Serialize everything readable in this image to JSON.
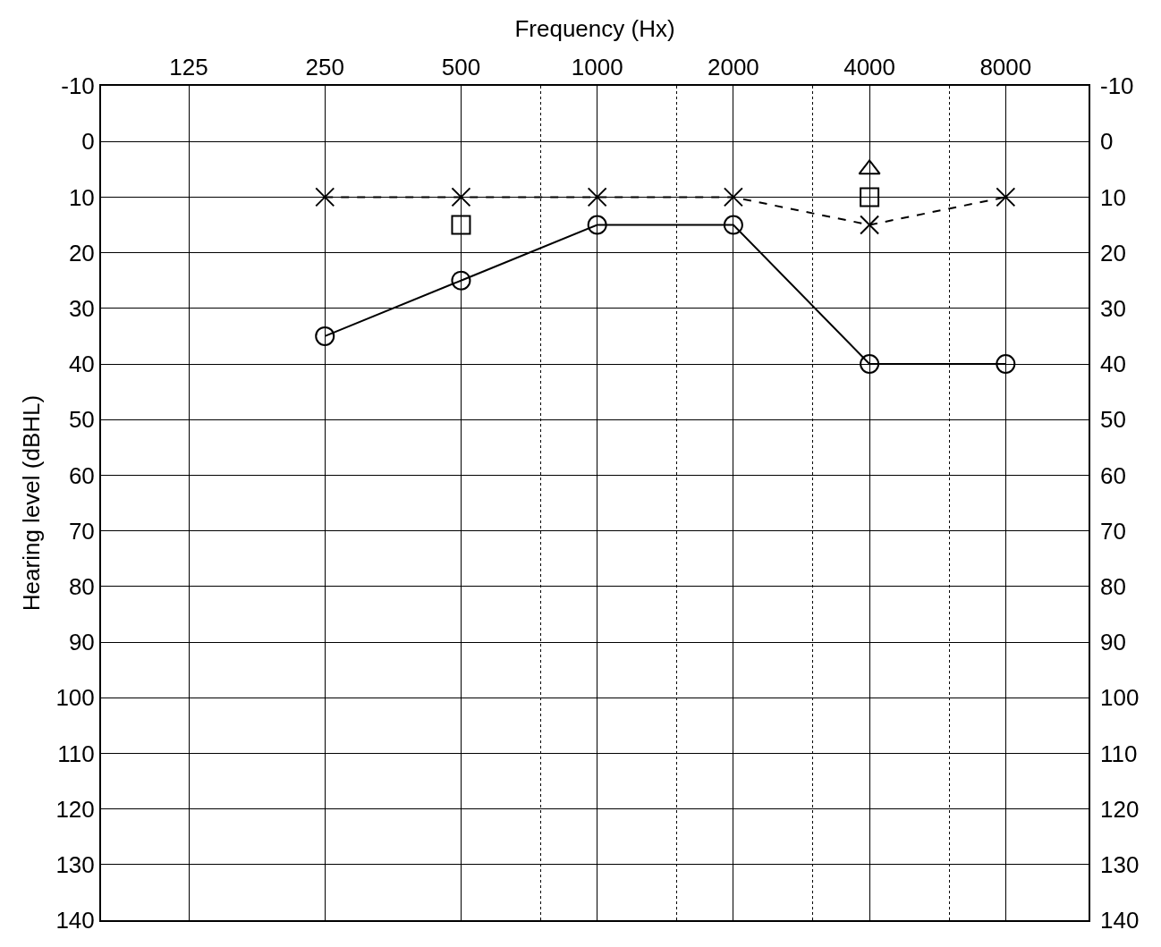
{
  "chart_data": {
    "type": "line",
    "xlabel": "Frequency (Hx)",
    "ylabel": "Hearing level (dBHL)",
    "log": "x",
    "x": [
      250,
      500,
      1000,
      2000,
      4000,
      8000
    ],
    "xlim": [
      80,
      12200
    ],
    "xticks": [
      125,
      250,
      500,
      {
        "value": 750,
        "label": null
      },
      1000,
      {
        "value": 1500,
        "label": null
      },
      2000,
      {
        "value": 3000,
        "label": null
      },
      4000,
      {
        "value": 6000,
        "label": null
      },
      8000
    ],
    "ylim": [
      140,
      -10
    ],
    "yticks": [
      -10,
      0,
      10,
      20,
      30,
      40,
      50,
      60,
      70,
      80,
      90,
      100,
      110,
      120,
      130,
      140
    ],
    "y2lim": [
      140,
      -10
    ],
    "y2ticks": [
      -10,
      0,
      10,
      20,
      30,
      40,
      50,
      60,
      70,
      80,
      90,
      100,
      110,
      120,
      130,
      140
    ],
    "grid": true,
    "series": [
      {
        "color": "#000000",
        "marker": "circle",
        "line_style": "solid",
        "values": [
          35,
          25,
          15,
          15,
          40,
          40
        ]
      },
      {
        "color": "#000000",
        "marker": "cross",
        "line_style": "dashed",
        "values": [
          10,
          10,
          10,
          10,
          15,
          10
        ]
      },
      {
        "type": "scatter",
        "color": "#000000",
        "marker": "square",
        "values": [
          null,
          15,
          null,
          null,
          10,
          null
        ]
      },
      {
        "type": "scatter",
        "color": "#000000",
        "marker": "triangle",
        "values": [
          null,
          null,
          null,
          null,
          5,
          null
        ]
      }
    ]
  }
}
